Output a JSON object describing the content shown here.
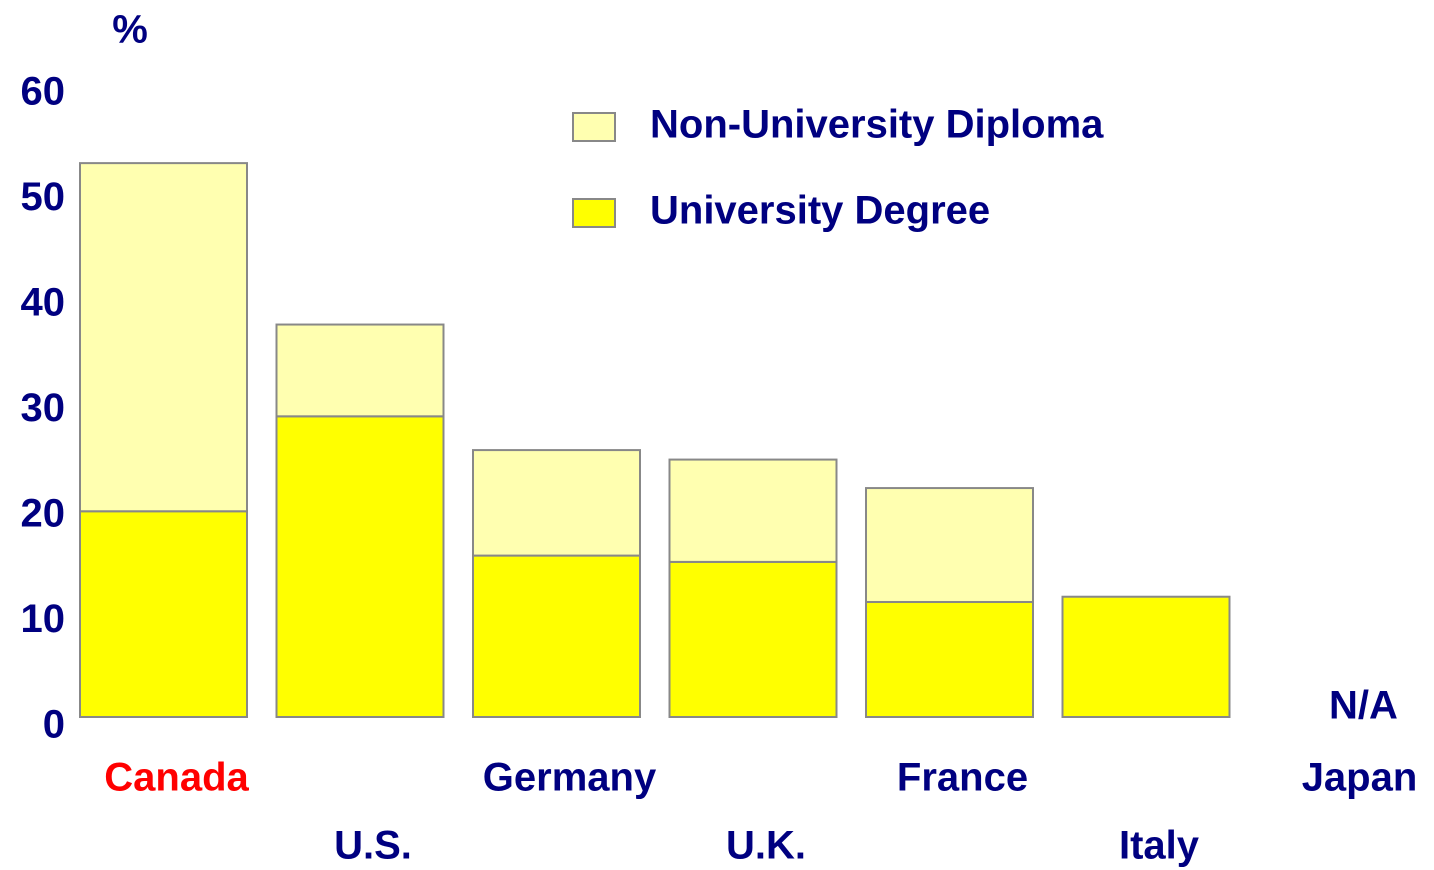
{
  "chart_data": {
    "type": "stacked_bar",
    "ylabel": "%",
    "categories": [
      "Canada",
      "U.S.",
      "Germany",
      "U.K.",
      "France",
      "Italy",
      "Japan"
    ],
    "series": [
      {
        "name": "University Degree",
        "color": "#ffff00",
        "values": [
          19.5,
          28.5,
          15.3,
          14.7,
          10.9,
          11.4,
          null
        ]
      },
      {
        "name": "Non-University Diploma",
        "color": "#ffffb0",
        "values": [
          33,
          8.7,
          10,
          9.7,
          10.8,
          0,
          null
        ]
      }
    ],
    "annotation": "N/A",
    "ylim": [
      0,
      60
    ],
    "yticks": [
      0,
      10,
      20,
      30,
      40,
      50,
      60
    ],
    "grid": false,
    "legend": "top-center",
    "text_color": "#000080",
    "highlight_index": 0,
    "highlight_color": "#ff0000"
  }
}
